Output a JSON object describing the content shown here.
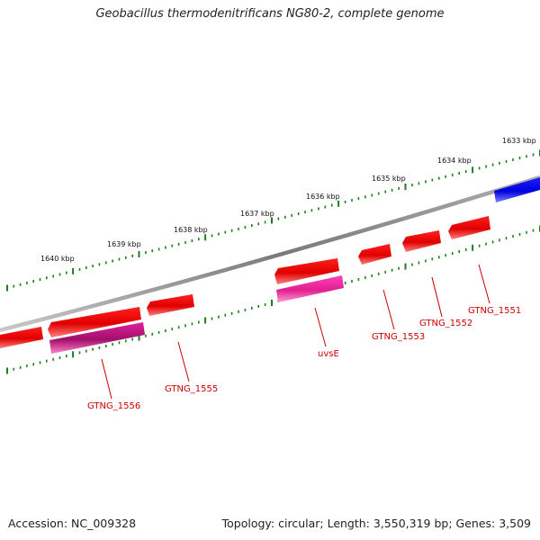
{
  "title": "Geobacillus thermodenitrificans NG80-2, complete genome",
  "footer": {
    "accession": "Accession: NC_009328",
    "summary": "Topology: circular; Length: 3,550,319 bp; Genes: 3,509"
  },
  "colors": {
    "backbone": "#808080",
    "tick": "#1e7d1e",
    "gene_forward": "#0000ee",
    "gene_reverse": "#ee0000",
    "gene_rna": "#ee2aa8",
    "label": "#cc0000"
  },
  "ruler": {
    "units": "kbp",
    "labels": [
      "1633 kbp",
      "1634 kbp",
      "1635 kbp",
      "1636 kbp",
      "1637 kbp",
      "1638 kbp",
      "1639 kbp",
      "1640 kbp"
    ]
  },
  "genes": [
    {
      "label": "GTNG_1551",
      "strand": "reverse"
    },
    {
      "label": "GTNG_1552",
      "strand": "reverse"
    },
    {
      "label": "GTNG_1553",
      "strand": "reverse"
    },
    {
      "label": "uvsE",
      "strand": "reverse"
    },
    {
      "label": "GTNG_1555",
      "strand": "reverse"
    },
    {
      "label": "GTNG_1556",
      "strand": "reverse"
    }
  ]
}
